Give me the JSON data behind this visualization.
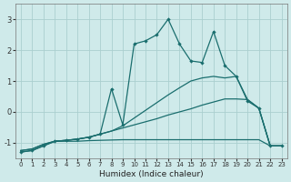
{
  "xlabel": "Humidex (Indice chaleur)",
  "bg_color": "#cfeaea",
  "grid_color": "#aacfcf",
  "line_color": "#1a6e6e",
  "xlim": [
    -0.5,
    23.5
  ],
  "ylim": [
    -1.5,
    3.5
  ],
  "xticks": [
    0,
    1,
    2,
    3,
    4,
    5,
    6,
    7,
    8,
    9,
    10,
    11,
    12,
    13,
    14,
    15,
    16,
    17,
    18,
    19,
    20,
    21,
    22,
    23
  ],
  "yticks": [
    -1,
    0,
    1,
    2,
    3
  ],
  "flat_x": [
    0,
    1,
    2,
    3,
    4,
    5,
    6,
    7,
    8,
    9,
    10,
    11,
    12,
    13,
    14,
    15,
    16,
    17,
    18,
    19,
    20,
    21,
    22,
    23
  ],
  "flat_y": [
    -1.3,
    -1.25,
    -1.1,
    -0.95,
    -0.95,
    -0.95,
    -0.93,
    -0.92,
    -0.91,
    -0.9,
    -0.9,
    -0.9,
    -0.9,
    -0.9,
    -0.9,
    -0.9,
    -0.9,
    -0.9,
    -0.9,
    -0.9,
    -0.9,
    -0.9,
    -1.1,
    -1.1
  ],
  "diag_low_x": [
    0,
    1,
    2,
    3,
    4,
    5,
    6,
    7,
    8,
    9,
    10,
    11,
    12,
    13,
    14,
    15,
    16,
    17,
    18,
    19,
    20,
    21,
    22,
    23
  ],
  "diag_low_y": [
    -1.25,
    -1.2,
    -1.05,
    -0.95,
    -0.92,
    -0.88,
    -0.82,
    -0.72,
    -0.62,
    -0.52,
    -0.42,
    -0.32,
    -0.22,
    -0.1,
    0.0,
    0.1,
    0.22,
    0.32,
    0.42,
    0.42,
    0.4,
    0.12,
    -1.1,
    -1.1
  ],
  "diag_high_x": [
    0,
    1,
    2,
    3,
    4,
    5,
    6,
    7,
    8,
    9,
    10,
    11,
    12,
    13,
    14,
    15,
    16,
    17,
    18,
    19,
    20,
    21,
    22,
    23
  ],
  "diag_high_y": [
    -1.25,
    -1.2,
    -1.05,
    -0.95,
    -0.92,
    -0.88,
    -0.82,
    -0.72,
    -0.62,
    -0.45,
    -0.2,
    0.05,
    0.3,
    0.55,
    0.78,
    1.0,
    1.1,
    1.15,
    1.1,
    1.15,
    0.4,
    0.12,
    -1.1,
    -1.1
  ],
  "main_x": [
    0,
    1,
    2,
    3,
    4,
    5,
    6,
    7,
    8,
    9,
    10,
    11,
    12,
    13,
    14,
    15,
    16,
    17,
    18,
    19,
    20,
    21,
    22,
    23
  ],
  "main_y": [
    -1.3,
    -1.25,
    -1.1,
    -0.95,
    -0.92,
    -0.88,
    -0.82,
    -0.72,
    0.75,
    -0.42,
    2.2,
    2.3,
    2.5,
    3.0,
    2.2,
    1.65,
    1.6,
    2.6,
    1.5,
    1.15,
    0.35,
    0.12,
    -1.1,
    -1.1
  ]
}
